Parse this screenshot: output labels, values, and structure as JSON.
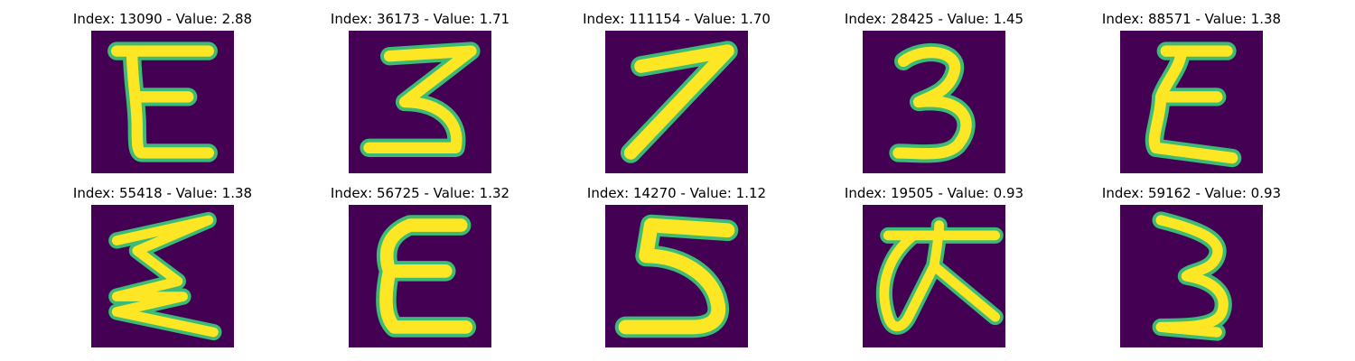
{
  "panels": [
    {
      "title": "Index: 13090 - Value: 2.88",
      "glyph": "E-shape"
    },
    {
      "title": "Index: 36173 - Value: 1.71",
      "glyph": "3-shape"
    },
    {
      "title": "Index: 111154 - Value: 1.70",
      "glyph": "7-shape"
    },
    {
      "title": "Index: 28425 - Value: 1.45",
      "glyph": "3-shape"
    },
    {
      "title": "Index: 88571 - Value: 1.38",
      "glyph": "E-shape"
    },
    {
      "title": "Index: 55418 - Value: 1.38",
      "glyph": "zigzag-shape"
    },
    {
      "title": "Index: 56725 - Value: 1.32",
      "glyph": "E-shape"
    },
    {
      "title": "Index: 14270 - Value: 1.12",
      "glyph": "5-shape"
    },
    {
      "title": "Index: 19505 - Value: 0.93",
      "glyph": "pi-shape"
    },
    {
      "title": "Index: 59162 - Value: 0.93",
      "glyph": "3-shape"
    }
  ],
  "colors": {
    "background": "#440154",
    "stroke": "#fde725",
    "edge": "#3bbb75"
  }
}
